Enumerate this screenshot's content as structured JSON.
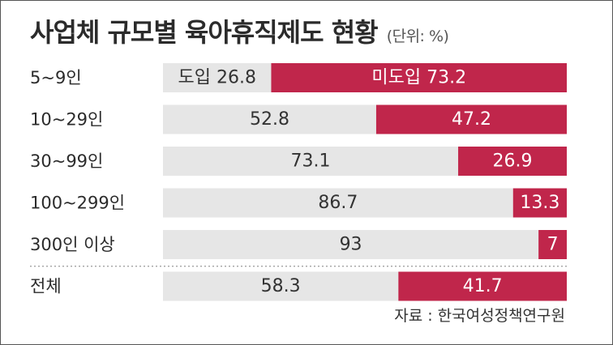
{
  "title": "사업체 규모별 육아휴직제도 현황",
  "unit_note": "(단위: %)",
  "source_note": "자료 : 한국여성정책연구원",
  "colors": {
    "introduced": "#e6e6e6",
    "not_introduced": "#c0264b",
    "text_dark": "#333333",
    "text_light": "#ffffff",
    "separator": "#999999"
  },
  "chart_data": {
    "type": "bar",
    "orientation": "horizontal",
    "stacked": true,
    "title": "사업체 규모별 육아휴직제도 현황",
    "unit": "%",
    "categories": [
      "5~9인",
      "10~29인",
      "30~99인",
      "100~299인",
      "300인 이상",
      "전체"
    ],
    "series": [
      {
        "name": "도입",
        "values": [
          26.8,
          52.8,
          73.1,
          86.7,
          93,
          58.3
        ]
      },
      {
        "name": "미도입",
        "values": [
          73.2,
          47.2,
          26.9,
          13.3,
          7,
          41.7
        ]
      }
    ],
    "value_labels": {
      "introduced": [
        "도입 26.8",
        "52.8",
        "73.1",
        "86.7",
        "93",
        "58.3"
      ],
      "not_introduced": [
        "미도입 73.2",
        "47.2",
        "26.9",
        "13.3",
        "7",
        "41.7"
      ]
    },
    "xlim": [
      0,
      100
    ],
    "source": "자료 : 한국여성정책연구원"
  }
}
